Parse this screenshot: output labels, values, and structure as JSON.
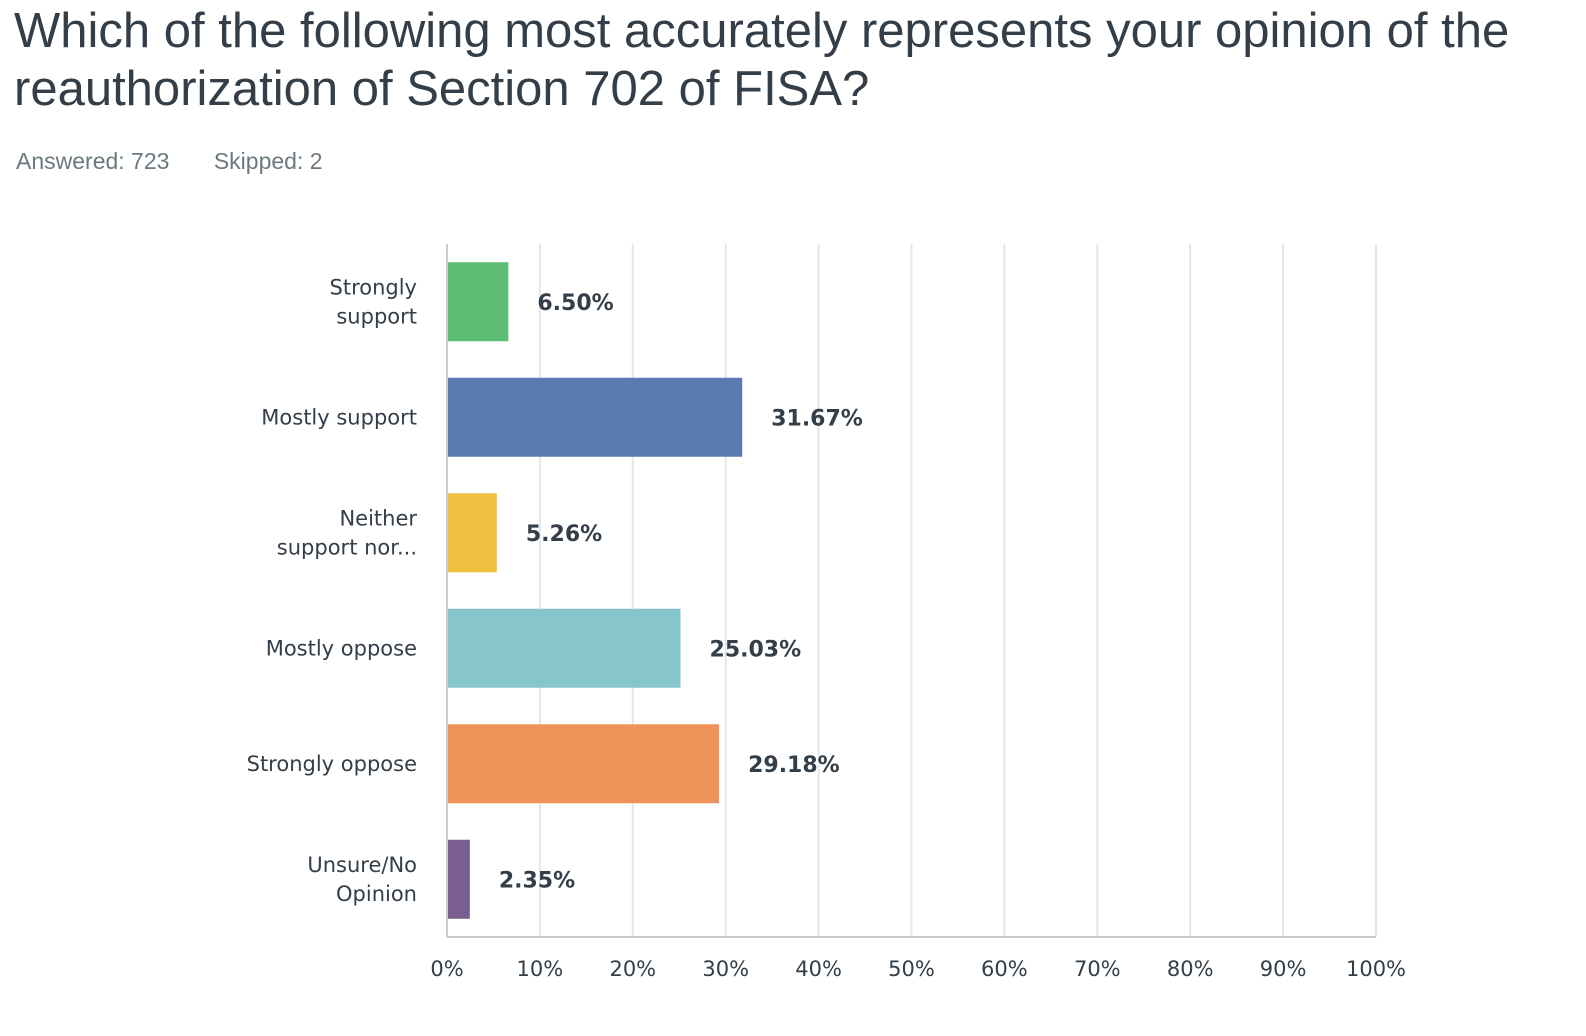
{
  "question": {
    "title": "Which of the following most accurately represents your opinion of the reauthorization of Section 702 of FISA?",
    "answered": "Answered: 723",
    "skipped": "Skipped: 2"
  },
  "chart_data": {
    "type": "bar",
    "orientation": "horizontal",
    "title": "Which of the following most accurately represents your opinion of the reauthorization of Section 702 of FISA?",
    "categories": [
      [
        "Strongly",
        "support"
      ],
      [
        "Mostly support"
      ],
      [
        "Neither",
        "support nor..."
      ],
      [
        "Mostly oppose"
      ],
      [
        "Strongly oppose"
      ],
      [
        "Unsure/No",
        "Opinion"
      ]
    ],
    "values": [
      6.5,
      31.67,
      5.26,
      25.03,
      29.18,
      2.35
    ],
    "value_labels": [
      "6.50%",
      "31.67%",
      "5.26%",
      "25.03%",
      "29.18%",
      "2.35%"
    ],
    "colors": [
      "#5cbd72",
      "#5b7bb0",
      "#f0c041",
      "#85c5cb",
      "#f0935b",
      "#7a5e8f"
    ],
    "xlim": [
      0,
      100
    ],
    "x_ticks": [
      "0%",
      "10%",
      "20%",
      "30%",
      "40%",
      "50%",
      "60%",
      "70%",
      "80%",
      "90%",
      "100%"
    ],
    "grid": true,
    "grid_color": "#e6e6e6",
    "axis_color": "#cccccc",
    "legend": "none"
  }
}
